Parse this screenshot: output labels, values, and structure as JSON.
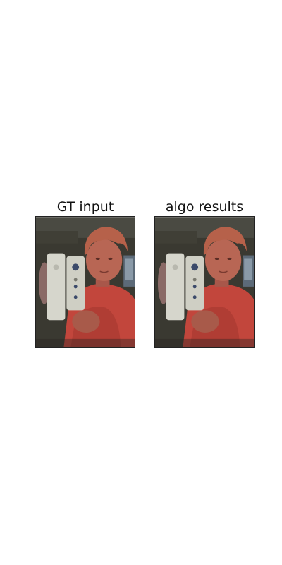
{
  "figure": {
    "panels": [
      {
        "title": "GT input"
      },
      {
        "title": "algo results"
      }
    ]
  },
  "colors": {
    "background": "#ffffff",
    "room": "#3b3a33",
    "shirt": "#c8463a",
    "skin": "#b5614e",
    "hair": "#b9654a",
    "remote": "#d9d9cf"
  },
  "image_content": {
    "subject": "child holding a white game remote",
    "panels_identical": true
  }
}
